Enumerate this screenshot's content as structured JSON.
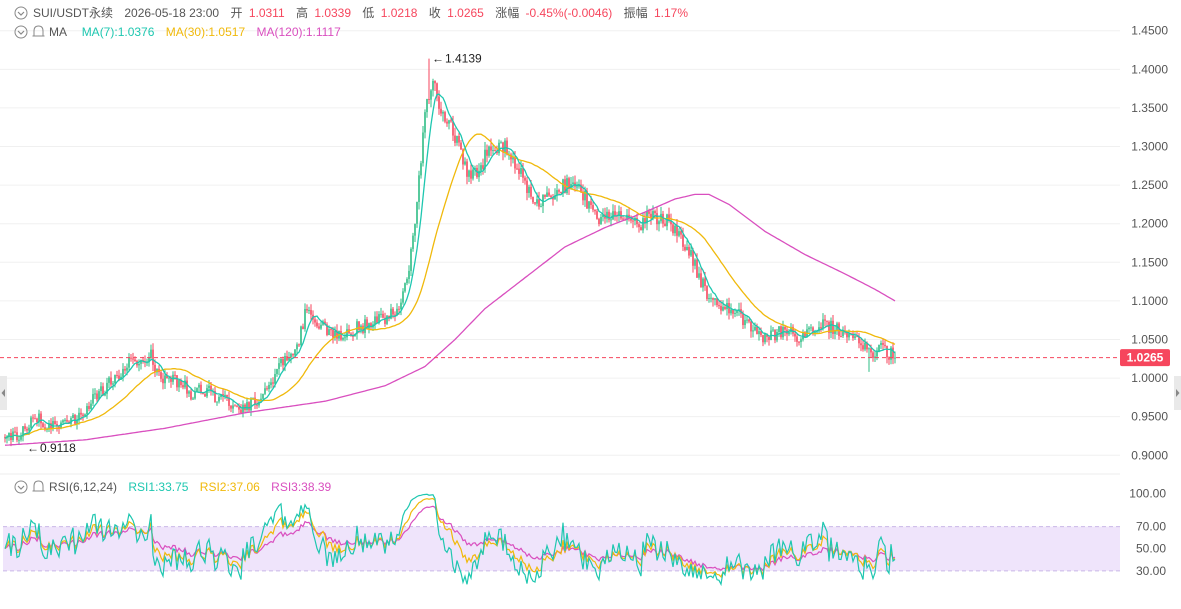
{
  "colors": {
    "up": "#2ebd85",
    "down": "#f6465d",
    "ma7": "#1ec7b0",
    "ma30": "#f0b90b",
    "ma120": "#d94fbf",
    "rsi1": "#1ec7b0",
    "rsi2": "#f0b90b",
    "rsi3": "#d94fbf",
    "price_label_bg": "#f6465d",
    "rsi_band": "#efe4fb",
    "text": "#555555",
    "grid": "#f0f0f0"
  },
  "header": {
    "symbol": "SUI/USDT永续",
    "datetime": "2026-05-18 23:00",
    "open_label": "开",
    "open_value": "1.0311",
    "high_label": "高",
    "high_value": "1.0339",
    "low_label": "低",
    "low_value": "1.0218",
    "close_label": "收",
    "close_value": "1.0265",
    "change_label": "涨幅",
    "change_value": "-0.45%(-0.0046)",
    "amplitude_label": "振幅",
    "amplitude_value": "1.17%"
  },
  "ma_legend": {
    "name": "MA",
    "ma7": "MA(7):1.0376",
    "ma30": "MA(30):1.0517",
    "ma120": "MA(120):1.1117"
  },
  "rsi_legend": {
    "name": "RSI(6,12,24)",
    "rsi1": "RSI1:33.75",
    "rsi2": "RSI2:37.06",
    "rsi3": "RSI3:38.39"
  },
  "annotations": {
    "high": "1.4139",
    "low": "0.9118",
    "high_value": 1.4139,
    "low_value": 0.9118
  },
  "last_price": {
    "label": "1.0265",
    "value": 1.0265
  },
  "icons": {
    "collapse": "chevron-circle-icon",
    "alert": "bell-icon",
    "scroll_left": "caret-left-icon",
    "scroll_right": "caret-right-icon"
  },
  "chart_data": {
    "type": "candlestick",
    "main_panel": {
      "ylim": [
        0.89,
        1.46
      ],
      "y_ticks": [
        "1.4500",
        "1.4000",
        "1.3500",
        "1.3000",
        "1.2500",
        "1.2000",
        "1.1500",
        "1.1000",
        "1.0500",
        "1.0000",
        "0.9500",
        "0.9000"
      ],
      "y_tick_values": [
        1.45,
        1.4,
        1.35,
        1.3,
        1.25,
        1.2,
        1.15,
        1.1,
        1.05,
        1.0,
        0.95,
        0.9
      ],
      "price_anchors": [
        [
          0,
          0.922
        ],
        [
          8,
          0.928
        ],
        [
          16,
          0.948
        ],
        [
          25,
          0.935
        ],
        [
          33,
          0.945
        ],
        [
          41,
          0.962
        ],
        [
          49,
          0.985
        ],
        [
          57,
          1.005
        ],
        [
          65,
          1.025
        ],
        [
          73,
          1.03
        ],
        [
          77,
          1.0
        ],
        [
          82,
          0.998
        ],
        [
          89,
          0.995
        ],
        [
          93,
          0.98
        ],
        [
          97,
          0.985
        ],
        [
          102,
          0.982
        ],
        [
          108,
          0.972
        ],
        [
          114,
          0.965
        ],
        [
          120,
          0.962
        ],
        [
          126,
          0.972
        ],
        [
          132,
          0.985
        ],
        [
          136,
          1.01
        ],
        [
          140,
          1.028
        ],
        [
          146,
          1.035
        ],
        [
          150,
          1.085
        ],
        [
          154,
          1.08
        ],
        [
          160,
          1.065
        ],
        [
          165,
          1.055
        ],
        [
          171,
          1.058
        ],
        [
          179,
          1.068
        ],
        [
          185,
          1.075
        ],
        [
          191,
          1.078
        ],
        [
          197,
          1.092
        ],
        [
          202,
          1.14
        ],
        [
          206,
          1.22
        ],
        [
          210,
          1.35
        ],
        [
          214,
          1.39
        ],
        [
          218,
          1.35
        ],
        [
          222,
          1.335
        ],
        [
          227,
          1.3
        ],
        [
          232,
          1.26
        ],
        [
          237,
          1.27
        ],
        [
          243,
          1.305
        ],
        [
          249,
          1.3
        ],
        [
          255,
          1.28
        ],
        [
          261,
          1.25
        ],
        [
          267,
          1.225
        ],
        [
          273,
          1.24
        ],
        [
          279,
          1.25
        ],
        [
          285,
          1.245
        ],
        [
          291,
          1.23
        ],
        [
          297,
          1.205
        ],
        [
          302,
          1.205
        ],
        [
          308,
          1.21
        ],
        [
          314,
          1.195
        ],
        [
          320,
          1.205
        ],
        [
          326,
          1.21
        ],
        [
          332,
          1.205
        ],
        [
          338,
          1.185
        ],
        [
          344,
          1.15
        ],
        [
          350,
          1.115
        ],
        [
          356,
          1.095
        ],
        [
          362,
          1.09
        ],
        [
          368,
          1.08
        ],
        [
          374,
          1.06
        ],
        [
          380,
          1.05
        ],
        [
          386,
          1.06
        ],
        [
          392,
          1.058
        ],
        [
          398,
          1.052
        ],
        [
          404,
          1.06
        ],
        [
          410,
          1.068
        ],
        [
          416,
          1.063
        ],
        [
          422,
          1.06
        ],
        [
          428,
          1.052
        ],
        [
          432,
          1.03
        ],
        [
          436,
          1.038
        ],
        [
          441,
          1.035
        ],
        [
          445,
          1.027
        ]
      ],
      "ma120_anchors": [
        [
          0,
          0.913
        ],
        [
          40,
          0.92
        ],
        [
          80,
          0.935
        ],
        [
          120,
          0.955
        ],
        [
          160,
          0.97
        ],
        [
          190,
          0.99
        ],
        [
          210,
          1.015
        ],
        [
          225,
          1.05
        ],
        [
          240,
          1.09
        ],
        [
          260,
          1.13
        ],
        [
          280,
          1.17
        ],
        [
          300,
          1.195
        ],
        [
          320,
          1.215
        ],
        [
          335,
          1.232
        ],
        [
          345,
          1.238
        ],
        [
          352,
          1.238
        ],
        [
          362,
          1.225
        ],
        [
          380,
          1.19
        ],
        [
          400,
          1.16
        ],
        [
          420,
          1.135
        ],
        [
          435,
          1.115
        ],
        [
          445,
          1.1
        ]
      ]
    },
    "rsi_panel": {
      "ylim": [
        0,
        104
      ],
      "y_ticks": [
        "100.00",
        "70.00",
        "50.00",
        "30.00"
      ],
      "y_tick_values": [
        100,
        70,
        50,
        30
      ],
      "band": [
        30,
        70
      ]
    },
    "series": [
      {
        "name": "MA(7)",
        "value": 1.0376
      },
      {
        "name": "MA(30)",
        "value": 1.0517
      },
      {
        "name": "MA(120)",
        "value": 1.1117
      },
      {
        "name": "RSI1",
        "value": 33.75
      },
      {
        "name": "RSI2",
        "value": 37.06
      },
      {
        "name": "RSI3",
        "value": 38.39
      }
    ],
    "high": 1.4139,
    "low": 0.9118,
    "last": 1.0265
  }
}
